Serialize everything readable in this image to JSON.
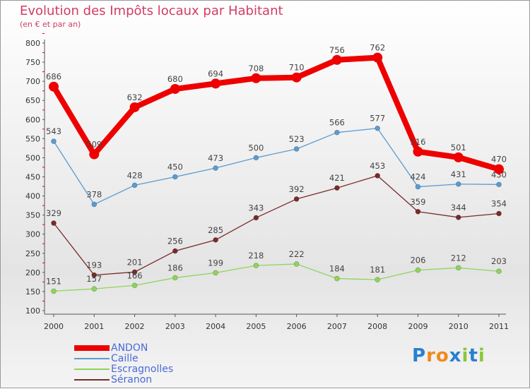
{
  "title": "Evolution des Impôts locaux par Habitant",
  "subtitle": "(en € et par an)",
  "logo": "Proxiti",
  "chart_data": {
    "type": "line",
    "x": [
      "2000",
      "2001",
      "2002",
      "2003",
      "2004",
      "2005",
      "2006",
      "2007",
      "2008",
      "2009",
      "2010",
      "2011"
    ],
    "ylim": [
      100,
      800
    ],
    "yticks": [
      100,
      150,
      200,
      250,
      300,
      350,
      400,
      450,
      500,
      550,
      600,
      650,
      700,
      750,
      800
    ],
    "series": [
      {
        "name": "ANDON",
        "color": "#ee0000",
        "values": [
          686,
          509,
          632,
          680,
          694,
          708,
          710,
          756,
          762,
          516,
          501,
          470
        ]
      },
      {
        "name": "Caille",
        "color": "#5b9bd0",
        "values": [
          543,
          378,
          428,
          450,
          473,
          500,
          523,
          566,
          577,
          424,
          431,
          430
        ]
      },
      {
        "name": "Escragnolles",
        "color": "#8fd45a",
        "values": [
          151,
          157,
          166,
          186,
          199,
          218,
          222,
          184,
          181,
          206,
          212,
          203
        ]
      },
      {
        "name": "Séranon",
        "color": "#7a2a2a",
        "values": [
          329,
          193,
          201,
          256,
          285,
          343,
          392,
          421,
          453,
          359,
          344,
          354
        ]
      }
    ]
  }
}
